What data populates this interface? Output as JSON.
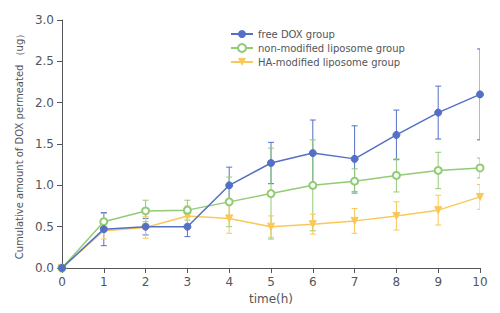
{
  "chart_data": {
    "type": "line",
    "xlabel": "time(h)",
    "ylabel": "Cumulative amount of DOX permeated （ug）",
    "x": [
      0,
      1,
      2,
      3,
      4,
      5,
      6,
      7,
      8,
      9,
      10
    ],
    "series": [
      {
        "name": "free DOX group",
        "marker": "circle",
        "values": [
          0.0,
          0.47,
          0.5,
          0.5,
          1.0,
          1.27,
          1.39,
          1.32,
          1.61,
          1.88,
          2.1
        ],
        "errors": [
          0.0,
          0.2,
          0.1,
          0.12,
          0.22,
          0.25,
          0.4,
          0.4,
          0.3,
          0.32,
          0.55
        ]
      },
      {
        "name": "non-modified liposome group",
        "marker": "open_circle",
        "values": [
          0.0,
          0.56,
          0.69,
          0.7,
          0.8,
          0.9,
          1.0,
          1.05,
          1.12,
          1.18,
          1.21
        ],
        "errors": [
          0.0,
          0.1,
          0.13,
          0.12,
          0.3,
          0.55,
          0.55,
          0.15,
          0.2,
          0.22,
          0.12
        ]
      },
      {
        "name": "HA-modified liposome group",
        "marker": "triangle_down",
        "values": [
          0.0,
          0.45,
          0.49,
          0.63,
          0.6,
          0.5,
          0.53,
          0.57,
          0.63,
          0.7,
          0.86
        ],
        "errors": [
          0.0,
          0.1,
          0.13,
          0.12,
          0.18,
          0.13,
          0.12,
          0.15,
          0.17,
          0.18,
          0.15
        ]
      }
    ],
    "xlim": [
      0,
      10
    ],
    "xticks": [
      0,
      1,
      2,
      3,
      4,
      5,
      6,
      7,
      8,
      9,
      10
    ],
    "ylim": [
      0,
      3.0
    ],
    "yticks": [
      {
        "value": 0,
        "label": "0.0"
      },
      0.5,
      {
        "value": 1,
        "label": "1.0"
      },
      1.5,
      {
        "value": 2,
        "label": "2.0"
      },
      2.5,
      {
        "value": 3,
        "label": "3.0"
      }
    ],
    "grid": false,
    "legend": "upper center"
  }
}
